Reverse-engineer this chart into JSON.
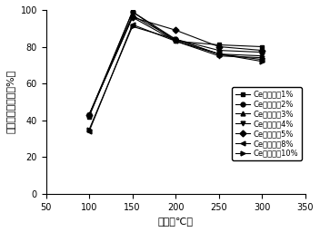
{
  "temperatures": [
    100,
    150,
    200,
    250,
    300
  ],
  "series": [
    {
      "label": "Ce的负载量1%",
      "values": [
        42,
        99,
        83,
        81,
        80
      ],
      "marker": "s",
      "color": "#000000"
    },
    {
      "label": "Ce的负载量2%",
      "values": [
        43,
        99,
        84,
        78,
        77
      ],
      "marker": "o",
      "color": "#000000"
    },
    {
      "label": "Ce的负载量3%",
      "values": [
        43,
        97,
        84,
        76,
        75
      ],
      "marker": "^",
      "color": "#000000"
    },
    {
      "label": "Ce的负载量4%",
      "values": [
        43,
        96,
        83,
        75,
        74
      ],
      "marker": "v",
      "color": "#000000"
    },
    {
      "label": "Ce的负载量5%",
      "values": [
        43,
        96,
        89,
        80,
        78
      ],
      "marker": "D",
      "color": "#000000"
    },
    {
      "label": "Ce的负载量8%",
      "values": [
        34,
        92,
        83,
        76,
        73
      ],
      "marker": "<",
      "color": "#000000"
    },
    {
      "label": "Ce的负载量10%",
      "values": [
        35,
        91,
        84,
        76,
        72
      ],
      "marker": ">",
      "color": "#000000"
    }
  ],
  "xlabel": "温度（℃）",
  "ylabel": "氮氧化物还原率（%）",
  "xlim": [
    50,
    350
  ],
  "ylim": [
    0,
    100
  ],
  "xticks": [
    50,
    100,
    150,
    200,
    250,
    300,
    350
  ],
  "yticks": [
    0,
    20,
    40,
    60,
    80,
    100
  ],
  "legend_fontsize": 6.0,
  "axis_fontsize": 8,
  "tick_fontsize": 7
}
